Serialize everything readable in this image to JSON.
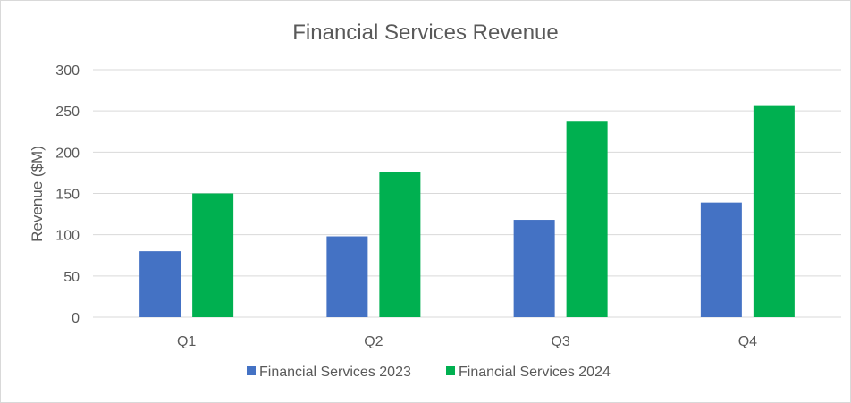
{
  "chart_data": {
    "type": "bar",
    "title": "Financial Services Revenue",
    "xlabel": "",
    "ylabel": "Revenue ($M)",
    "categories": [
      "Q1",
      "Q2",
      "Q3",
      "Q4"
    ],
    "series": [
      {
        "name": "Financial Services 2023",
        "values": [
          80,
          98,
          118,
          139
        ],
        "color": "#4472c4"
      },
      {
        "name": "Financial Services 2024",
        "values": [
          150,
          176,
          238,
          256
        ],
        "color": "#00b050"
      }
    ],
    "ylim": [
      0,
      300
    ],
    "yticks": [
      0,
      50,
      100,
      150,
      200,
      250,
      300
    ],
    "grid": true,
    "legend": "bottom",
    "colors": {
      "gridline": "#d9d9d9",
      "axis_line": "#d9d9d9",
      "text": "#595959"
    }
  }
}
